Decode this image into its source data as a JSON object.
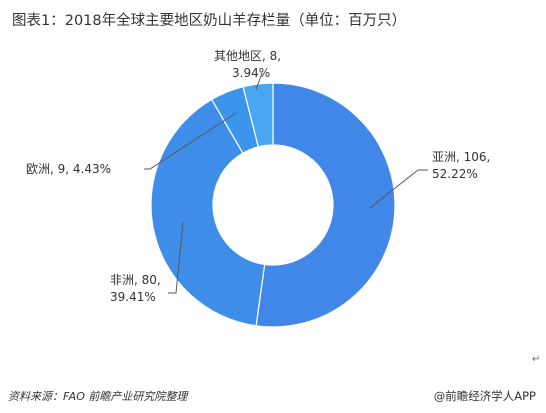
{
  "page": {
    "title": "图表1：2018年全球主要地区奶山羊存栏量（单位：百万只）",
    "source": "资料来源：FAO 前瞻产业研究院整理",
    "brand": "@前瞻经济学人APP",
    "return_mark": "↵"
  },
  "chart_data": {
    "type": "pie",
    "title": "图表1：2018年全球主要地区奶山羊存栏量（单位：百万只）",
    "donut": true,
    "unit": "百万只",
    "slices": [
      {
        "name": "亚洲",
        "value": 106,
        "percent": "52.22%",
        "line1": "亚洲, 106,",
        "line2": "52.22%",
        "color": "#4187e8"
      },
      {
        "name": "非洲",
        "value": 80,
        "percent": "39.41%",
        "line1": "非洲, 80,",
        "line2": "39.41%",
        "color": "#3e8ee9"
      },
      {
        "name": "欧洲",
        "value": 9,
        "percent": "4.43%",
        "line1": "欧洲, 9, 4.43%",
        "line2": "",
        "color": "#3b95ec"
      },
      {
        "name": "其他地区",
        "value": 8,
        "percent": "3.94%",
        "line1": "其他地区, 8,",
        "line2": "3.94%",
        "color": "#4aa6f2"
      }
    ]
  }
}
